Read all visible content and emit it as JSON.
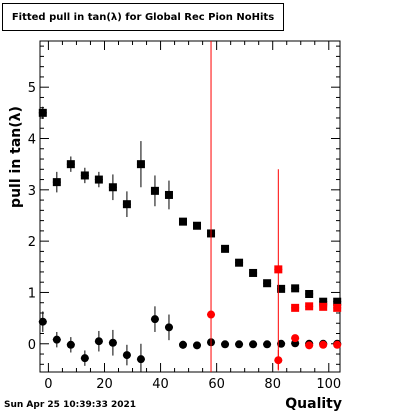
{
  "title": "Fitted pull in tan(λ) for Global Rec Pion NoHits",
  "timestamp": "Sun Apr 25 10:39:33 2021",
  "chart_data": {
    "type": "scatter",
    "title": "Fitted pull in tan(λ) for Global Rec Pion NoHits",
    "xlabel": "Quality",
    "ylabel": "pull in tan(λ)",
    "xlim": [
      -3,
      104
    ],
    "ylim": [
      -0.55,
      5.9
    ],
    "xticks": [
      0,
      20,
      40,
      60,
      80,
      100
    ],
    "xtick_labels": [
      "0",
      "20",
      "40",
      "60",
      "80",
      "100"
    ],
    "yticks": [
      0,
      1,
      2,
      3,
      4,
      5
    ],
    "ytick_labels": [
      "0",
      "1",
      "2",
      "3",
      "4",
      "5"
    ],
    "grid": false,
    "series": [
      {
        "color": "#000000",
        "marker": "square",
        "points": [
          {
            "x": -2,
            "y": 4.5,
            "err": 0.12
          },
          {
            "x": 3,
            "y": 3.15,
            "err": 0.2
          },
          {
            "x": 8,
            "y": 3.5,
            "err": 0.15
          },
          {
            "x": 13,
            "y": 3.28,
            "err": 0.15
          },
          {
            "x": 18,
            "y": 3.2,
            "err": 0.15
          },
          {
            "x": 23,
            "y": 3.05,
            "err": 0.25
          },
          {
            "x": 28,
            "y": 2.72,
            "err": 0.25
          },
          {
            "x": 33,
            "y": 3.5,
            "err": 0.45
          },
          {
            "x": 38,
            "y": 2.98,
            "err": 0.3
          },
          {
            "x": 43,
            "y": 2.9,
            "err": 0.28
          },
          {
            "x": 48,
            "y": 2.38,
            "err": 0.07
          },
          {
            "x": 53,
            "y": 2.3,
            "err": 0.06
          },
          {
            "x": 58,
            "y": 2.15,
            "err": 0.05
          },
          {
            "x": 63,
            "y": 1.85,
            "err": 0.04
          },
          {
            "x": 68,
            "y": 1.58,
            "err": 0.04
          },
          {
            "x": 73,
            "y": 1.38,
            "err": 0.04
          },
          {
            "x": 78,
            "y": 1.18,
            "err": 0.04
          },
          {
            "x": 83,
            "y": 1.07,
            "err": 0.04
          },
          {
            "x": 88,
            "y": 1.08,
            "err": 0.04
          },
          {
            "x": 93,
            "y": 0.97,
            "err": 0.04
          },
          {
            "x": 98,
            "y": 0.82,
            "err": 0.04
          },
          {
            "x": 103,
            "y": 0.82,
            "err": 0.04
          }
        ]
      },
      {
        "color": "#000000",
        "marker": "circle",
        "points": [
          {
            "x": -2,
            "y": 0.43,
            "err": 0.2
          },
          {
            "x": 3,
            "y": 0.08,
            "err": 0.15
          },
          {
            "x": 8,
            "y": -0.02,
            "err": 0.15
          },
          {
            "x": 13,
            "y": -0.28,
            "err": 0.15
          },
          {
            "x": 18,
            "y": 0.05,
            "err": 0.2
          },
          {
            "x": 23,
            "y": 0.02,
            "err": 0.25
          },
          {
            "x": 28,
            "y": -0.22,
            "err": 0.2
          },
          {
            "x": 33,
            "y": -0.3,
            "err": 0.3
          },
          {
            "x": 38,
            "y": 0.48,
            "err": 0.25
          },
          {
            "x": 43,
            "y": 0.32,
            "err": 0.25
          },
          {
            "x": 48,
            "y": -0.02,
            "err": 0.08
          },
          {
            "x": 53,
            "y": -0.03,
            "err": 0.06
          },
          {
            "x": 58,
            "y": 0.03,
            "err": 0.05
          },
          {
            "x": 63,
            "y": -0.01,
            "err": 0.04
          },
          {
            "x": 68,
            "y": -0.01,
            "err": 0.04
          },
          {
            "x": 73,
            "y": -0.01,
            "err": 0.04
          },
          {
            "x": 78,
            "y": -0.01,
            "err": 0.04
          },
          {
            "x": 83,
            "y": 0.0,
            "err": 0.04
          },
          {
            "x": 88,
            "y": 0.01,
            "err": 0.04
          },
          {
            "x": 93,
            "y": 0.0,
            "err": 0.04
          },
          {
            "x": 98,
            "y": 0.0,
            "err": 0.04
          },
          {
            "x": 103,
            "y": 0.0,
            "err": 0.04
          }
        ]
      },
      {
        "color": "#ff0000",
        "marker": "square",
        "points": [
          {
            "x": 82,
            "y": 1.45,
            "err": 1.95
          },
          {
            "x": 88,
            "y": 0.7,
            "err": 0.05
          },
          {
            "x": 93,
            "y": 0.73,
            "err": 0.05
          },
          {
            "x": 98,
            "y": 0.72,
            "err": 0.05
          },
          {
            "x": 103,
            "y": 0.7,
            "err": 0.05
          }
        ]
      },
      {
        "color": "#ff0000",
        "marker": "circle",
        "points": [
          {
            "x": 58,
            "y": 0.57,
            "err": 6.0
          },
          {
            "x": 82,
            "y": -0.32,
            "err": 0.2
          },
          {
            "x": 88,
            "y": 0.11,
            "err": 0.05
          },
          {
            "x": 93,
            "y": -0.03,
            "err": 0.05
          },
          {
            "x": 98,
            "y": -0.02,
            "err": 0.05
          },
          {
            "x": 103,
            "y": -0.02,
            "err": 0.05
          }
        ]
      }
    ]
  }
}
